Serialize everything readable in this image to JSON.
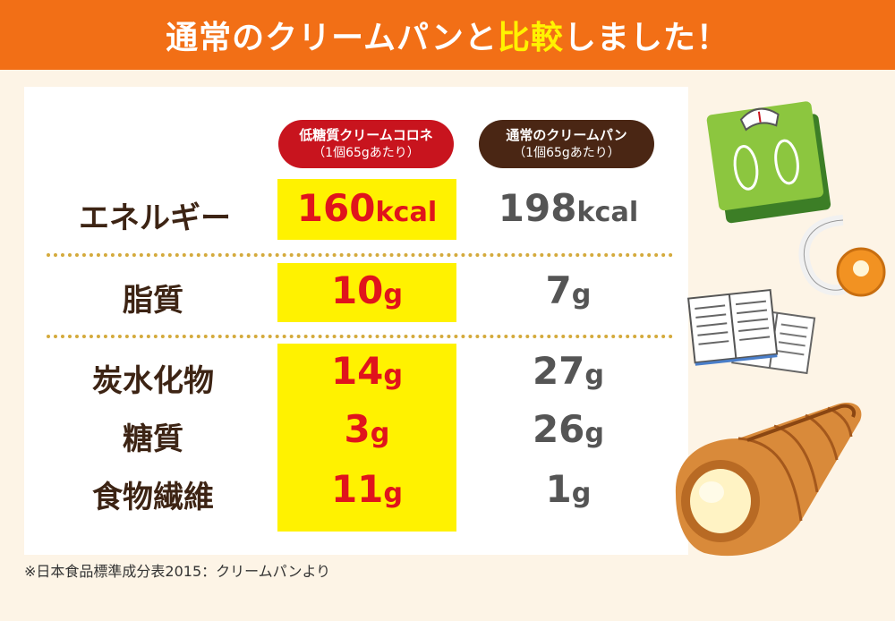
{
  "header": {
    "title_part1": "通常のクリームパンと",
    "title_highlight": "比較",
    "title_part2": "しました！"
  },
  "columns": {
    "low": {
      "name": "低糖質クリームコロネ",
      "sub": "（1個65gあたり）"
    },
    "std": {
      "name": "通常のクリームパン",
      "sub": "（1個65gあたり）"
    }
  },
  "rows": [
    {
      "label": "エネルギー",
      "low_num": "160",
      "low_unit": "kcal",
      "std_num": "198",
      "std_unit": "kcal"
    },
    {
      "label": "脂質",
      "low_num": "10",
      "low_unit": "g",
      "std_num": "7",
      "std_unit": "g"
    },
    {
      "label": "炭水化物",
      "low_num": "14",
      "low_unit": "g",
      "std_num": "27",
      "std_unit": "g"
    },
    {
      "label": "糖質",
      "low_num": "3",
      "low_unit": "g",
      "std_num": "26",
      "std_unit": "g"
    },
    {
      "label": "食物繊維",
      "low_num": "11",
      "low_unit": "g",
      "std_num": "1",
      "std_unit": "g"
    }
  ],
  "footnote": "※日本食品標準成分表2015：クリームパンより",
  "colors": {
    "banner": "#f26f16",
    "highlight": "#fff200",
    "low_badge": "#c8141e",
    "std_badge": "#4a2614",
    "low_value": "#e0141c",
    "std_value": "#555555"
  },
  "illustrations": [
    "bathroom-scale-icon",
    "tape-measure-icon",
    "notebooks-icon",
    "cream-cornet-icon"
  ]
}
